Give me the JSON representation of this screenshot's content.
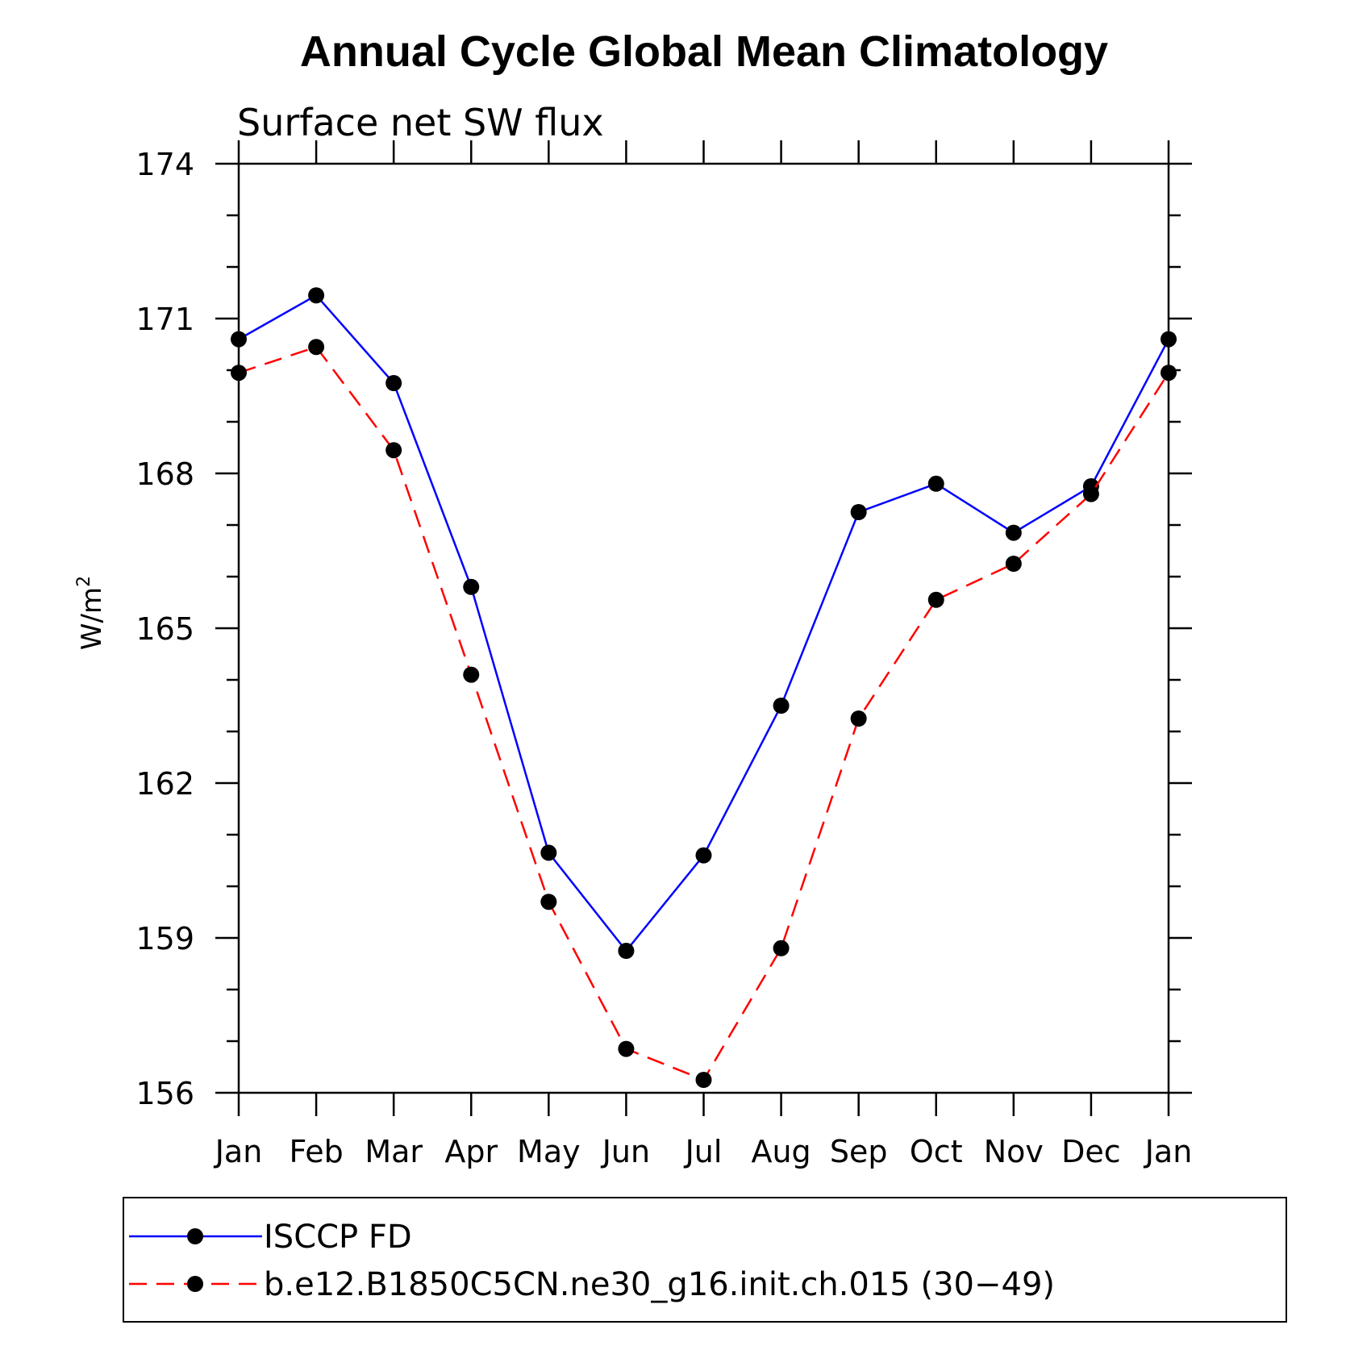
{
  "chart_data": {
    "type": "line",
    "title": "Annual Cycle Global Mean Climatology",
    "subtitle": "Surface net SW flux",
    "ylabel": "W/m",
    "ylabel_sup": "2",
    "categories": [
      "Jan",
      "Feb",
      "Mar",
      "Apr",
      "May",
      "Jun",
      "Jul",
      "Aug",
      "Sep",
      "Oct",
      "Nov",
      "Dec",
      "Jan"
    ],
    "ylim": [
      156,
      174
    ],
    "yticks": [
      156,
      159,
      162,
      165,
      168,
      171,
      174
    ],
    "series": [
      {
        "name": "ISCCP FD",
        "color": "#0000ff",
        "dashed": false,
        "values": [
          170.6,
          171.45,
          169.75,
          165.8,
          160.65,
          158.75,
          160.6,
          163.5,
          167.25,
          167.8,
          166.85,
          167.75,
          170.6
        ]
      },
      {
        "name": "b.e12.B1850C5CN.ne30_g16.init.ch.015 (30−49)",
        "color": "#ff0000",
        "dashed": true,
        "values": [
          169.95,
          170.45,
          168.45,
          164.1,
          159.7,
          156.85,
          156.25,
          158.8,
          163.25,
          165.55,
          166.25,
          167.6,
          169.95
        ]
      }
    ],
    "legend_position": "bottom",
    "grid": false
  }
}
